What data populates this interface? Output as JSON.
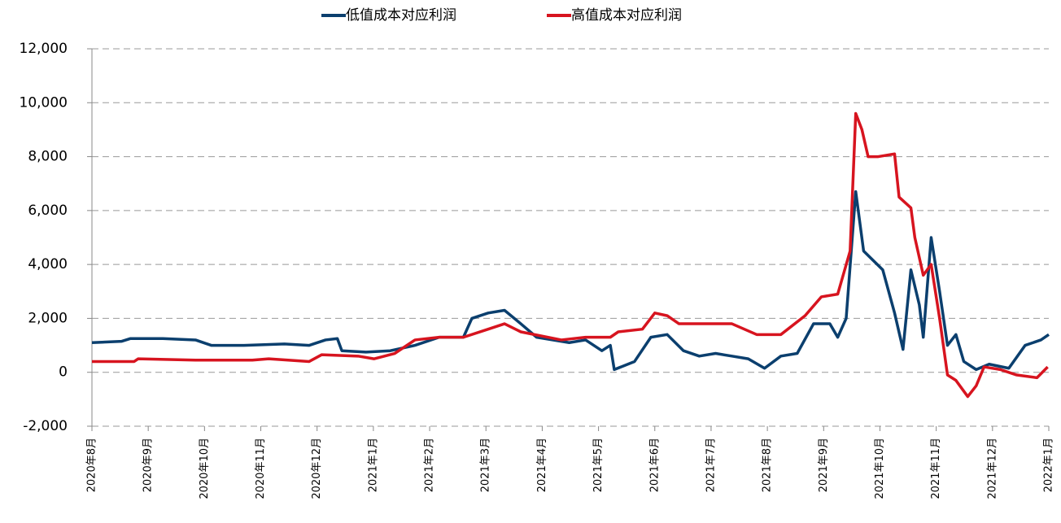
{
  "chart_data": {
    "type": "line",
    "series": [
      {
        "name": "低值成本对应利润",
        "color": "#0b3f6e",
        "x": [
          0,
          0.53,
          0.68,
          1.26,
          1.84,
          2.12,
          2.7,
          3.42,
          3.86,
          4.15,
          4.36,
          4.44,
          4.87,
          5.3,
          5.74,
          6.17,
          6.6,
          6.75,
          7.04,
          7.33,
          7.62,
          7.9,
          8.48,
          8.77,
          9.06,
          9.21,
          9.28,
          9.64,
          9.93,
          10.22,
          10.51,
          10.79,
          11.08,
          11.37,
          11.66,
          11.95,
          12.24,
          12.53,
          12.82,
          13.11,
          13.25,
          13.4,
          13.57,
          13.71,
          14.05,
          14.26,
          14.41,
          14.55,
          14.7,
          14.77,
          14.91,
          15.06,
          15.2,
          15.35,
          15.49,
          15.71,
          15.94,
          16.29,
          16.58,
          16.86,
          17.0
        ],
        "values": [
          1100,
          1150,
          1250,
          1250,
          1200,
          1000,
          1000,
          1050,
          1000,
          1200,
          1250,
          800,
          750,
          800,
          1000,
          1300,
          1300,
          2000,
          2200,
          2300,
          1800,
          1300,
          1100,
          1200,
          800,
          1000,
          100,
          400,
          1300,
          1400,
          800,
          600,
          700,
          600,
          500,
          150,
          600,
          700,
          1800,
          1800,
          1300,
          2000,
          6700,
          4500,
          3800,
          2200,
          850,
          3800,
          2500,
          1300,
          5000,
          3000,
          1000,
          1400,
          400,
          100,
          300,
          150,
          1000,
          1200,
          1400
        ]
      },
      {
        "name": "高值成本对应利润",
        "color": "#d7141f",
        "x": [
          0,
          0.75,
          0.82,
          1.84,
          2.85,
          3.14,
          3.86,
          4.08,
          4.73,
          5.01,
          5.38,
          5.74,
          6.17,
          6.6,
          7.04,
          7.33,
          7.62,
          8.34,
          8.77,
          9.21,
          9.35,
          9.78,
          10,
          10.22,
          10.43,
          10.79,
          11.37,
          11.81,
          12.24,
          12.67,
          12.96,
          13.25,
          13.47,
          13.57,
          13.68,
          13.79,
          13.97,
          14.26,
          14.34,
          14.55,
          14.62,
          14.77,
          14.91,
          15.06,
          15.2,
          15.35,
          15.56,
          15.71,
          15.85,
          16.14,
          16.43,
          16.79,
          16.98
        ],
        "values": [
          400,
          400,
          500,
          450,
          450,
          500,
          400,
          650,
          600,
          500,
          700,
          1200,
          1300,
          1300,
          1600,
          1800,
          1500,
          1200,
          1300,
          1300,
          1500,
          1600,
          2200,
          2100,
          1800,
          1800,
          1800,
          1400,
          1400,
          2100,
          2800,
          2900,
          4500,
          9600,
          9000,
          8000,
          8000,
          8100,
          6500,
          6100,
          5000,
          3600,
          4000,
          2000,
          -100,
          -300,
          -900,
          -500,
          200,
          100,
          -100,
          -200,
          200
        ]
      }
    ],
    "xlim": [
      0,
      17
    ],
    "xticks": [
      {
        "value": 0,
        "label": "2020年8月"
      },
      {
        "value": 1,
        "label": "2020年9月"
      },
      {
        "value": 2,
        "label": "2020年10月"
      },
      {
        "value": 3,
        "label": "2020年11月"
      },
      {
        "value": 4,
        "label": "2020年12月"
      },
      {
        "value": 5,
        "label": "2021年1月"
      },
      {
        "value": 6,
        "label": "2021年2月"
      },
      {
        "value": 7,
        "label": "2021年3月"
      },
      {
        "value": 8,
        "label": "2021年4月"
      },
      {
        "value": 9,
        "label": "2021年5月"
      },
      {
        "value": 10,
        "label": "2021年6月"
      },
      {
        "value": 11,
        "label": "2021年7月"
      },
      {
        "value": 12,
        "label": "2021年8月"
      },
      {
        "value": 13,
        "label": "2021年9月"
      },
      {
        "value": 14,
        "label": "2021年10月"
      },
      {
        "value": 15,
        "label": "2021年11月"
      },
      {
        "value": 16,
        "label": "2021年12月"
      },
      {
        "value": 17,
        "label": "2022年1月"
      }
    ],
    "ylim": [
      -2000,
      12000
    ],
    "yticks": [
      {
        "value": -2000,
        "label": "-2,000"
      },
      0,
      {
        "value": 2000,
        "label": "2,000"
      },
      {
        "value": 4000,
        "label": "4,000"
      },
      {
        "value": 6000,
        "label": "6,000"
      },
      {
        "value": 8000,
        "label": "8,000"
      },
      {
        "value": 10000,
        "label": "10,000"
      },
      {
        "value": 12000,
        "label": "12,000"
      }
    ],
    "grid": true,
    "legend": "top"
  }
}
